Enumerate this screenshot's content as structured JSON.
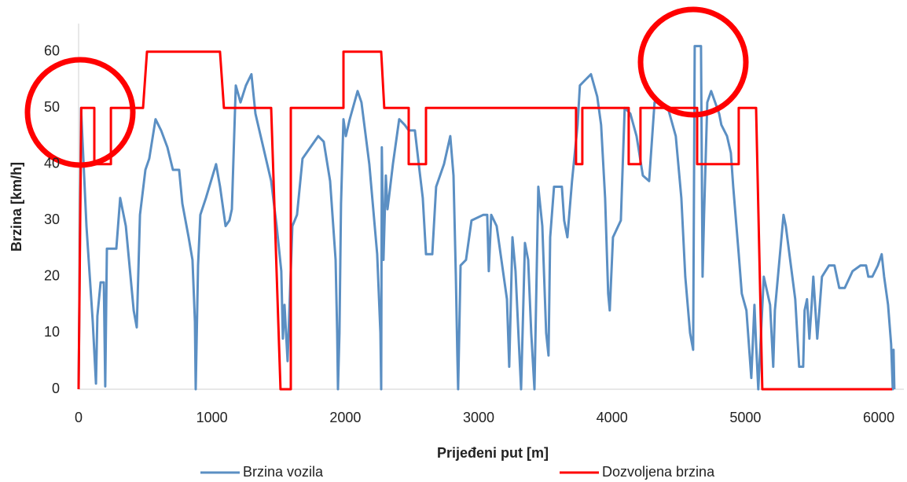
{
  "chart_data": {
    "type": "line",
    "xlabel": "Prijeđeni put [m]",
    "ylabel": "Brzina [km/h]",
    "xlim": [
      0,
      6200
    ],
    "ylim": [
      0,
      65
    ],
    "xticks": [
      0,
      1000,
      2000,
      3000,
      4000,
      5000,
      6000
    ],
    "yticks": [
      0,
      10,
      20,
      30,
      40,
      50,
      60
    ],
    "grid": false,
    "legend": "bottom",
    "series": [
      {
        "name": "Brzina vozila",
        "color": "#5b8fc3",
        "x": [
          0,
          18,
          59,
          106,
          130,
          141,
          165,
          189,
          200,
          212,
          265,
          283,
          312,
          354,
          413,
          436,
          460,
          501,
          530,
          577,
          619,
          666,
          707,
          754,
          778,
          825,
          854,
          872,
          878,
          896,
          913,
          955,
          1031,
          1061,
          1102,
          1131,
          1149,
          1179,
          1214,
          1255,
          1296,
          1326,
          1385,
          1444,
          1485,
          1520,
          1532,
          1544,
          1567,
          1579,
          1603,
          1638,
          1679,
          1738,
          1797,
          1838,
          1886,
          1927,
          1939,
          1945,
          1956,
          1968,
          1986,
          2004,
          2033,
          2092,
          2121,
          2180,
          2239,
          2263,
          2269,
          2274,
          2286,
          2304,
          2316,
          2327,
          2357,
          2404,
          2445,
          2475,
          2522,
          2551,
          2581,
          2605,
          2652,
          2681,
          2740,
          2787,
          2811,
          2829,
          2840,
          2846,
          2864,
          2905,
          2946,
          3035,
          3064,
          3076,
          3094,
          3135,
          3212,
          3229,
          3253,
          3276,
          3300,
          3318,
          3347,
          3371,
          3394,
          3418,
          3447,
          3477,
          3506,
          3524,
          3536,
          3565,
          3624,
          3641,
          3665,
          3700,
          3742,
          3759,
          3800,
          3842,
          3889,
          3918,
          3948,
          3971,
          3983,
          4007,
          4066,
          4095,
          4137,
          4184,
          4231,
          4278,
          4319,
          4360,
          4419,
          4478,
          4520,
          4549,
          4585,
          4608,
          4620,
          4667,
          4679,
          4690,
          4714,
          4743,
          4803,
          4820,
          4862,
          4891,
          4909,
          4950,
          4973,
          5008,
          5026,
          5044,
          5068,
          5080,
          5097,
          5115,
          5138,
          5185,
          5209,
          5221,
          5286,
          5303,
          5374,
          5403,
          5433,
          5444,
          5462,
          5480,
          5497,
          5509,
          5539,
          5574,
          5627,
          5668,
          5704,
          5745,
          5804,
          5863,
          5905,
          5922,
          5952,
          5993,
          6022,
          6040,
          6070,
          6093,
          6105,
          6111,
          6117
        ],
        "values": [
          0,
          50,
          29,
          12,
          1,
          13,
          19,
          19,
          0.5,
          25,
          25,
          25,
          34,
          29,
          14,
          11,
          31,
          39,
          41,
          48,
          46,
          43,
          39,
          39,
          33,
          27,
          23,
          12,
          0,
          22,
          31,
          34,
          40,
          36,
          29,
          30,
          32,
          54,
          51,
          54,
          56,
          49,
          43,
          37,
          29,
          21,
          9,
          15,
          5,
          13,
          29,
          31,
          41,
          43,
          45,
          44,
          37,
          23,
          10,
          0,
          10,
          33,
          48,
          45,
          48,
          53,
          51,
          40,
          24,
          10,
          0,
          43,
          23,
          38,
          32,
          34,
          40,
          48,
          47,
          46,
          46,
          40,
          34,
          24,
          24,
          36,
          40,
          45,
          38,
          20,
          6,
          0,
          22,
          23,
          30,
          31,
          31,
          21,
          31,
          29,
          16,
          4,
          27,
          21,
          9,
          0,
          26,
          23,
          10,
          0,
          36,
          29,
          10,
          6,
          27,
          36,
          36,
          30,
          27,
          37,
          47,
          54,
          55,
          56,
          52,
          47,
          34,
          17,
          14,
          27,
          30,
          50,
          49,
          45,
          38,
          37,
          51,
          51,
          50,
          45,
          34,
          20,
          10,
          7,
          61,
          61,
          20,
          31,
          51,
          53,
          49,
          47,
          45,
          42,
          36,
          24,
          17,
          14,
          8,
          2,
          15,
          8,
          0,
          9,
          20,
          15,
          4,
          14,
          31,
          29,
          16,
          4,
          4,
          14,
          16,
          9,
          15,
          20,
          9,
          20,
          22,
          22,
          18,
          18,
          21,
          22,
          22,
          20,
          20,
          22,
          24,
          20,
          15,
          8,
          0,
          7,
          0
        ]
      },
      {
        "name": "Dozvoljena brzina",
        "color": "#ff0000",
        "x": [
          0,
          20,
          118,
          118,
          242,
          242,
          483,
          513,
          1060,
          1090,
          1444,
          1514,
          1591,
          1591,
          1986,
          1986,
          2269,
          2292,
          2475,
          2475,
          2605,
          2605,
          3730,
          3730,
          3777,
          3777,
          4125,
          4125,
          4213,
          4213,
          4638,
          4638,
          4950,
          4950,
          5080,
          5127,
          6100
        ],
        "values": [
          0,
          50,
          50,
          40,
          40,
          50,
          50,
          60,
          60,
          50,
          50,
          0,
          0,
          50,
          50,
          60,
          60,
          50,
          50,
          40,
          40,
          50,
          50,
          40,
          40,
          50,
          50,
          40,
          40,
          50,
          50,
          40,
          40,
          50,
          50,
          0,
          0
        ]
      }
    ]
  }
}
